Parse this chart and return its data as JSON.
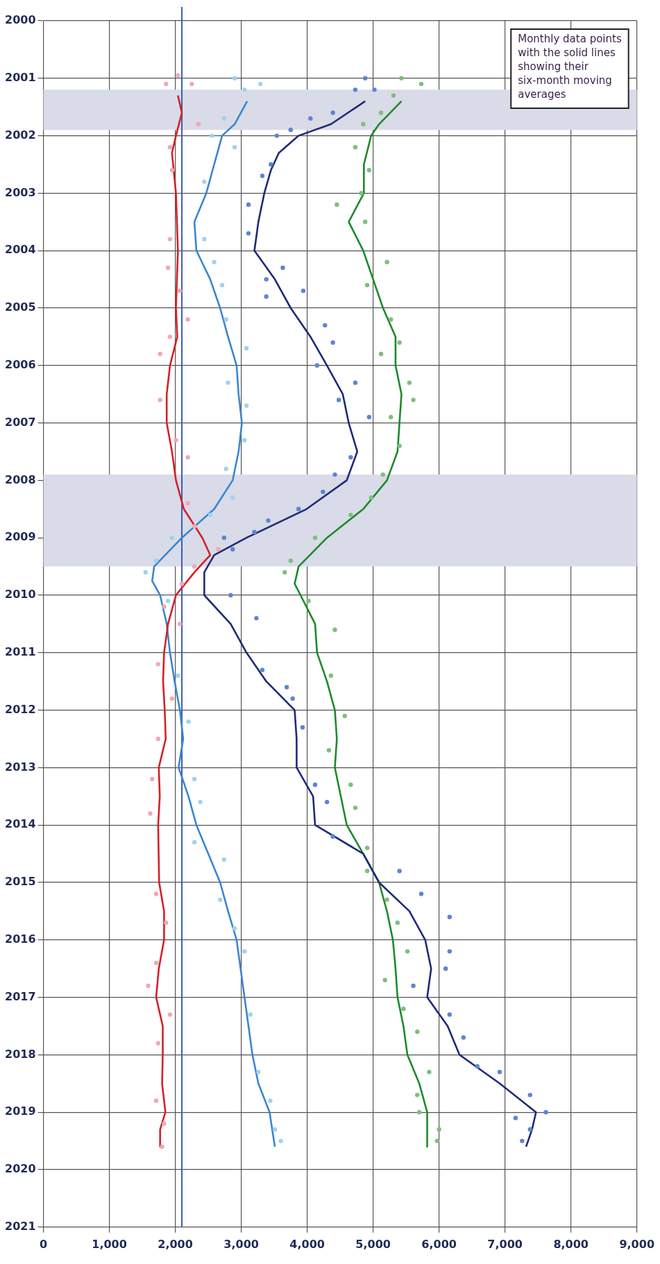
{
  "chart_data": {
    "type": "line",
    "annotations": [
      "Monthly data points with the solid lines showing their six-month moving averages"
    ],
    "xlim": [
      0,
      9000
    ],
    "xticks": [
      0,
      {
        "value": 1000,
        "label": "1,000"
      },
      {
        "value": 2000,
        "label": "2,000"
      },
      {
        "value": 3000,
        "label": "3,000"
      },
      {
        "value": 4000,
        "label": "4,000"
      },
      {
        "value": 5000,
        "label": "5,000"
      },
      {
        "value": 6000,
        "label": "6,000"
      },
      {
        "value": 7000,
        "label": "7,000"
      },
      {
        "value": 8000,
        "label": "8,000"
      },
      {
        "value": 9000,
        "label": "9,000"
      }
    ],
    "ylim": [
      2021,
      2000
    ],
    "yticks": [
      2000,
      2001,
      2002,
      2003,
      2004,
      2005,
      2006,
      2007,
      2008,
      2009,
      2010,
      2011,
      2012,
      2013,
      2014,
      2015,
      2016,
      2017,
      2018,
      2019,
      2020,
      2021
    ],
    "grid": true,
    "legend": false,
    "bands": [
      {
        "axis": "y",
        "from": 2001.2,
        "to": 2001.9,
        "color": "#d9dbe8"
      },
      {
        "axis": "y",
        "from": 2007.9,
        "to": 2009.5,
        "color": "#d9dbe8"
      }
    ],
    "ref_lines": [
      {
        "axis": "x",
        "value": 2100,
        "color": "#3b5bb5"
      }
    ],
    "series": [
      {
        "type": "scatter",
        "marker": "circle",
        "color": "#f2a7b5",
        "values": [
          2000.95,
          2001.1,
          2001.1,
          2001.8,
          2002.2,
          2002.6,
          2003.8,
          2004.3,
          2004.7,
          2005.2,
          2005.5,
          2005.8,
          2006.6,
          2007.3,
          2007.6,
          2008.4,
          2008.8,
          2009.2,
          2009.5,
          2009.8,
          2010.2,
          2010.5,
          2011.2,
          2011.8,
          2012.5,
          2013.2,
          2013.8,
          2015.2,
          2015.7,
          2016.4,
          2016.8,
          2017.3,
          2017.8,
          2018.8,
          2019.2,
          2019.6
        ],
        "x": [
          2040,
          1860,
          2250,
          2350,
          1920,
          1950,
          1920,
          1890,
          2070,
          2190,
          1920,
          1770,
          1770,
          2010,
          2190,
          2190,
          2290,
          2650,
          2290,
          2100,
          1830,
          2070,
          1740,
          1950,
          1740,
          1650,
          1620,
          1710,
          1860,
          1710,
          1590,
          1920,
          1740,
          1710,
          1830,
          1800
        ]
      },
      {
        "type": "scatter",
        "marker": "circle",
        "color": "#9fd3ef",
        "values": [
          2001.0,
          2001.1,
          2001.2,
          2001.7,
          2002.0,
          2002.2,
          2002.8,
          2003.8,
          2004.2,
          2004.6,
          2005.2,
          2005.7,
          2006.3,
          2006.7,
          2007.3,
          2007.8,
          2008.3,
          2008.6,
          2009.0,
          2009.4,
          2009.6,
          2010.1,
          2011.4,
          2012.2,
          2013.2,
          2013.6,
          2014.3,
          2014.6,
          2015.3,
          2015.8,
          2016.2,
          2017.3,
          2018.3,
          2018.8,
          2019.3,
          2019.5
        ],
        "x": [
          2900,
          3290,
          3050,
          2740,
          2560,
          2900,
          2440,
          2440,
          2590,
          2710,
          2770,
          3080,
          2800,
          3080,
          3050,
          2770,
          2870,
          2530,
          1950,
          1710,
          1550,
          1890,
          2040,
          2200,
          2290,
          2380,
          2290,
          2740,
          2680,
          2900,
          3050,
          3140,
          3260,
          3440,
          3510,
          3600
        ]
      },
      {
        "type": "scatter",
        "marker": "circle",
        "color": "#5a86d2",
        "values": [
          2001.0,
          2001.2,
          2001.2,
          2001.6,
          2001.7,
          2001.9,
          2002.0,
          2002.5,
          2002.7,
          2003.2,
          2003.7,
          2004.3,
          2004.5,
          2004.7,
          2004.8,
          2005.3,
          2005.6,
          2006.0,
          2006.3,
          2006.6,
          2006.9,
          2007.6,
          2007.9,
          2008.2,
          2008.5,
          2008.7,
          2008.9,
          2009.0,
          2009.2,
          2010.0,
          2010.4,
          2011.3,
          2011.6,
          2011.8,
          2012.3,
          2013.3,
          2013.6,
          2014.2,
          2014.8,
          2015.2,
          2015.6,
          2016.2,
          2016.5,
          2016.8,
          2017.3,
          2017.7,
          2018.2,
          2018.3,
          2018.7,
          2019.0,
          2019.1,
          2019.3,
          2019.5
        ],
        "x": [
          4880,
          4730,
          5020,
          4390,
          4050,
          3750,
          3540,
          3450,
          3320,
          3110,
          3110,
          3630,
          3380,
          3940,
          3380,
          4270,
          4390,
          4150,
          4730,
          4480,
          4940,
          4660,
          4420,
          4240,
          3870,
          3410,
          3200,
          2740,
          2870,
          2840,
          3230,
          3320,
          3690,
          3780,
          3930,
          4120,
          4300,
          4390,
          5400,
          5730,
          6160,
          6160,
          6100,
          5610,
          6160,
          6370,
          6580,
          6920,
          7380,
          7620,
          7160,
          7380,
          7260
        ]
      },
      {
        "type": "scatter",
        "marker": "circle",
        "color": "#7dbf7d",
        "values": [
          2001.0,
          2001.1,
          2001.3,
          2001.6,
          2001.8,
          2002.2,
          2002.6,
          2003.0,
          2003.2,
          2003.5,
          2004.2,
          2004.6,
          2005.2,
          2005.6,
          2005.8,
          2006.3,
          2006.6,
          2006.9,
          2007.4,
          2007.9,
          2008.3,
          2008.6,
          2009.0,
          2009.4,
          2009.6,
          2010.1,
          2010.6,
          2011.4,
          2012.1,
          2012.7,
          2013.3,
          2013.7,
          2014.4,
          2014.8,
          2015.3,
          2015.7,
          2016.2,
          2016.7,
          2017.2,
          2017.6,
          2018.3,
          2018.7,
          2019.0,
          2019.3,
          2019.5
        ],
        "x": [
          5430,
          5730,
          5310,
          5120,
          4850,
          4730,
          4940,
          4820,
          4450,
          4880,
          5210,
          4910,
          5270,
          5400,
          5120,
          5550,
          5610,
          5270,
          5400,
          5150,
          4970,
          4660,
          4120,
          3750,
          3660,
          4020,
          4420,
          4360,
          4570,
          4330,
          4660,
          4730,
          4910,
          4910,
          5210,
          5370,
          5520,
          5180,
          5460,
          5670,
          5850,
          5670,
          5700,
          6000,
          5970
        ]
      },
      {
        "type": "line",
        "marker": "none",
        "color": "#d42027",
        "values": [
          2001.3,
          2001.6,
          2002,
          2002.3,
          2003,
          2004,
          2005,
          2005.5,
          2006,
          2006.5,
          2007,
          2007.5,
          2008,
          2008.5,
          2009,
          2009.3,
          2009.6,
          2010,
          2010.5,
          2011,
          2011.5,
          2012,
          2012.5,
          2013,
          2013.5,
          2014,
          2015,
          2015.5,
          2016,
          2016.5,
          2017,
          2017.5,
          2018,
          2018.5,
          2019,
          2019.3,
          2019.6
        ],
        "x": [
          2040,
          2100,
          2010,
          1950,
          2010,
          2040,
          2010,
          2030,
          1920,
          1870,
          1870,
          1950,
          2010,
          2130,
          2410,
          2530,
          2290,
          2010,
          1890,
          1830,
          1815,
          1840,
          1855,
          1750,
          1765,
          1740,
          1755,
          1830,
          1830,
          1750,
          1710,
          1810,
          1810,
          1800,
          1850,
          1770,
          1770
        ]
      },
      {
        "type": "line",
        "marker": "none",
        "color": "#3a86d0",
        "values": [
          2001.4,
          2001.8,
          2002,
          2002.5,
          2003,
          2003.5,
          2004,
          2004.5,
          2005,
          2005.5,
          2006,
          2006.5,
          2007,
          2007.5,
          2008,
          2008.5,
          2009,
          2009.5,
          2009.75,
          2010,
          2010.5,
          2011,
          2011.5,
          2012,
          2012.5,
          2013,
          2013.5,
          2014,
          2014.5,
          2015,
          2015.5,
          2016,
          2016.5,
          2017,
          2017.5,
          2018,
          2018.5,
          2019,
          2019.6
        ],
        "x": [
          3090,
          2900,
          2710,
          2590,
          2470,
          2290,
          2320,
          2530,
          2680,
          2800,
          2930,
          2960,
          3010,
          2960,
          2870,
          2590,
          2100,
          1680,
          1650,
          1770,
          1870,
          1920,
          1990,
          2070,
          2120,
          2050,
          2200,
          2320,
          2500,
          2680,
          2800,
          2930,
          2990,
          3050,
          3110,
          3170,
          3260,
          3430,
          3510
        ]
      },
      {
        "type": "line",
        "marker": "none",
        "color": "#1f2a78",
        "values": [
          2001.4,
          2001.8,
          2002,
          2002.3,
          2002.6,
          2003,
          2003.5,
          2004,
          2004.5,
          2005,
          2005.5,
          2006,
          2006.5,
          2007,
          2007.5,
          2008,
          2008.5,
          2009,
          2009.3,
          2009.6,
          2010,
          2010.5,
          2011,
          2011.5,
          2012,
          2012.5,
          2013,
          2013.5,
          2014,
          2014.5,
          2015,
          2015.5,
          2016,
          2016.5,
          2017,
          2017.5,
          2018,
          2018.5,
          2019,
          2019.3,
          2019.6
        ],
        "x": [
          4880,
          4360,
          3870,
          3570,
          3450,
          3350,
          3260,
          3200,
          3510,
          3750,
          4050,
          4300,
          4540,
          4630,
          4760,
          4600,
          3990,
          3080,
          2590,
          2440,
          2440,
          2840,
          3080,
          3380,
          3810,
          3840,
          3840,
          4090,
          4120,
          4850,
          5090,
          5550,
          5790,
          5880,
          5820,
          6130,
          6310,
          6920,
          7470,
          7410,
          7320
        ]
      },
      {
        "type": "line",
        "marker": "none",
        "color": "#1d8a2a",
        "values": [
          2001.4,
          2001.8,
          2002,
          2002.5,
          2003,
          2003.5,
          2004,
          2004.5,
          2005,
          2005.5,
          2006,
          2006.5,
          2007,
          2007.5,
          2008,
          2008.5,
          2009,
          2009.5,
          2009.8,
          2010,
          2010.5,
          2011,
          2011.5,
          2012,
          2012.5,
          2013,
          2013.5,
          2014,
          2014.5,
          2015,
          2015.5,
          2016,
          2016.5,
          2017,
          2017.5,
          2018,
          2018.5,
          2019,
          2019.6
        ],
        "x": [
          5430,
          5090,
          4970,
          4860,
          4860,
          4630,
          4850,
          5000,
          5150,
          5340,
          5340,
          5430,
          5400,
          5370,
          5210,
          4850,
          4300,
          3870,
          3810,
          3900,
          4120,
          4150,
          4300,
          4420,
          4450,
          4420,
          4510,
          4600,
          4850,
          5090,
          5210,
          5300,
          5340,
          5370,
          5460,
          5520,
          5700,
          5820,
          5820
        ]
      }
    ]
  }
}
